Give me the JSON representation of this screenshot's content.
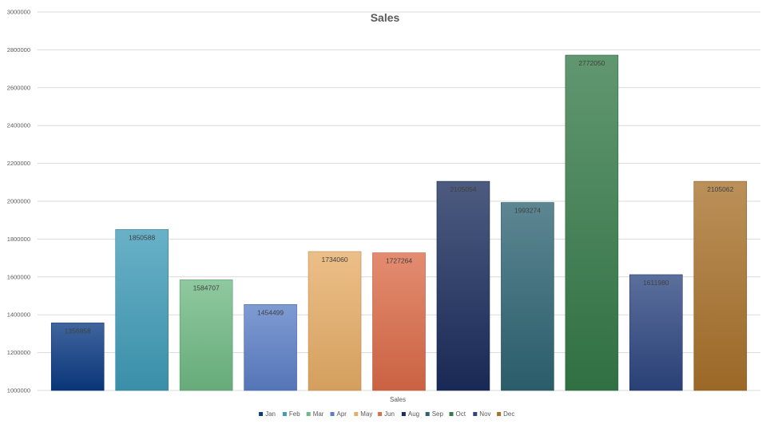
{
  "chart_data": {
    "type": "bar",
    "title": "Sales",
    "xlabel": "Sales",
    "ylabel": "",
    "ylim": [
      1000000,
      3000000
    ],
    "yticks": [
      1000000,
      1200000,
      1400000,
      1600000,
      1800000,
      2000000,
      2200000,
      2400000,
      2600000,
      2800000,
      3000000
    ],
    "grid": true,
    "legend_position": "bottom",
    "series": [
      {
        "name": "Jan",
        "values": [
          1356858
        ],
        "label": "1356858",
        "color": "#0a3a82"
      },
      {
        "name": "Feb",
        "values": [
          1850588
        ],
        "label": "1850588",
        "color": "#3f9bb8"
      },
      {
        "name": "Mar",
        "values": [
          1584707
        ],
        "label": "1584707",
        "color": "#6fba84"
      },
      {
        "name": "Apr",
        "values": [
          1454499
        ],
        "label": "1454499",
        "color": "#5b7fc7"
      },
      {
        "name": "May",
        "values": [
          1734060
        ],
        "label": "1734060",
        "color": "#e6ad66"
      },
      {
        "name": "Jun",
        "values": [
          1727264
        ],
        "label": "1727264",
        "color": "#dc6b48"
      },
      {
        "name": "Aug",
        "values": [
          2105054
        ],
        "label": "2105054",
        "color": "#1b2d5c"
      },
      {
        "name": "Sep",
        "values": [
          1993274
        ],
        "label": "1993274",
        "color": "#2e6473"
      },
      {
        "name": "Oct",
        "values": [
          2772050
        ],
        "label": "2772050",
        "color": "#347a48"
      },
      {
        "name": "Nov",
        "values": [
          1611980
        ],
        "label": "1611980",
        "color": "#2d4680"
      },
      {
        "name": "Dec",
        "values": [
          2105062
        ],
        "label": "2105062",
        "color": "#a8712a"
      }
    ]
  }
}
